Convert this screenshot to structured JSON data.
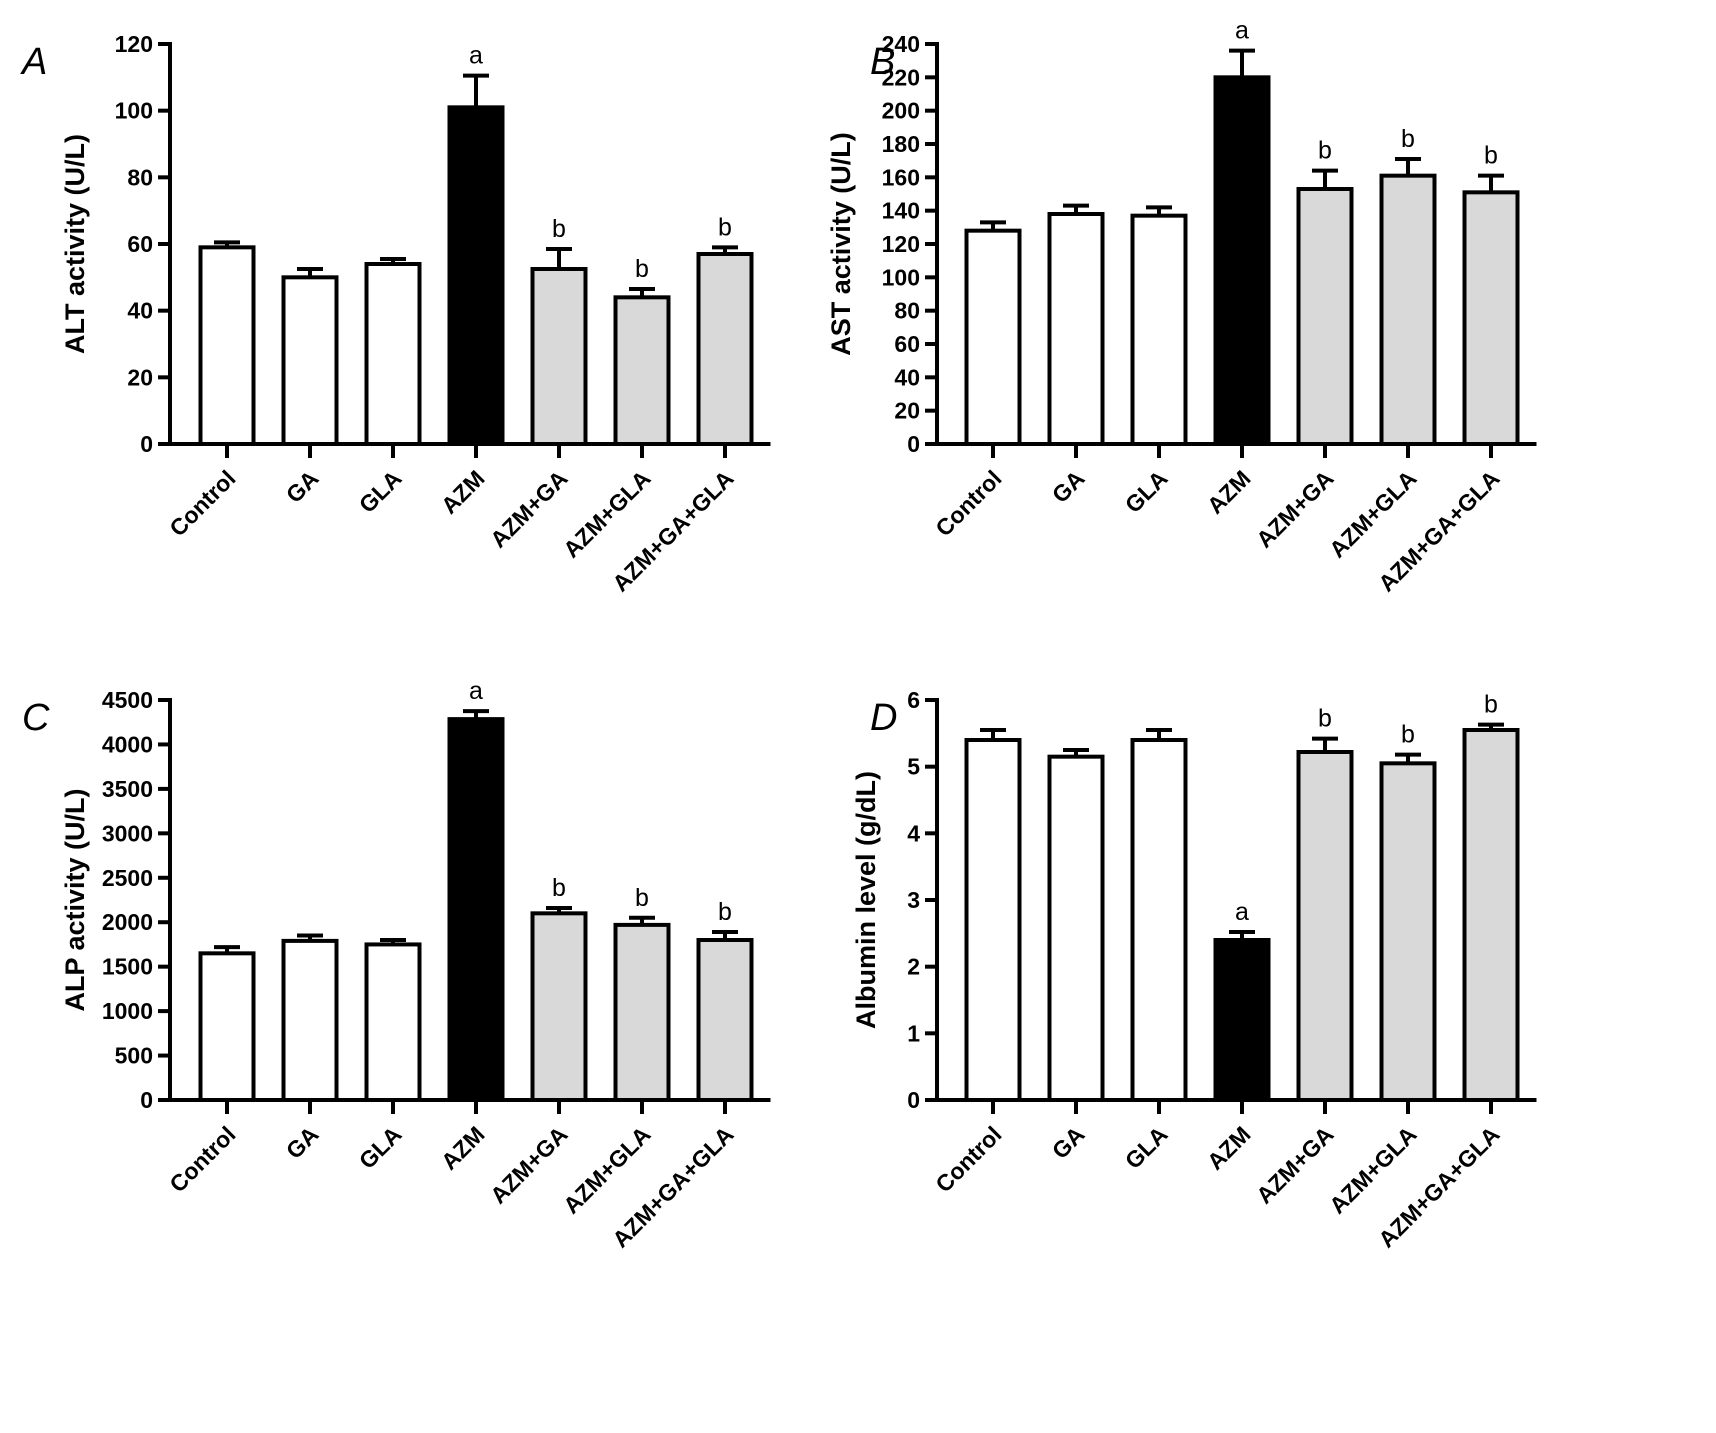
{
  "figure": {
    "panels": [
      "A",
      "B",
      "C",
      "D"
    ]
  },
  "chart_data": [
    {
      "type": "bar",
      "panel_letter": "A",
      "title": "",
      "xlabel": "",
      "ylabel": "ALT activity (U/L)",
      "categories": [
        "Control",
        "GA",
        "GLA",
        "AZM",
        "AZM+GA",
        "AZM+GLA",
        "AZM+GA+GLA"
      ],
      "values": [
        59,
        50,
        54,
        101,
        52.5,
        44,
        57
      ],
      "errors": [
        1.5,
        2.5,
        1.5,
        9.5,
        6,
        2.5,
        2
      ],
      "fill_colors": [
        "#ffffff",
        "#ffffff",
        "#ffffff",
        "#000000",
        "#d9d9d9",
        "#d9d9d9",
        "#d9d9d9"
      ],
      "significance": [
        "",
        "",
        "",
        "a",
        "b",
        "b",
        "b"
      ],
      "ylim": [
        0,
        120
      ],
      "yticks": [
        0,
        20,
        40,
        60,
        80,
        100,
        120
      ],
      "grid": false,
      "legend": "none"
    },
    {
      "type": "bar",
      "panel_letter": "B",
      "title": "",
      "xlabel": "",
      "ylabel": "AST activity (U/L)",
      "categories": [
        "Control",
        "GA",
        "GLA",
        "AZM",
        "AZM+GA",
        "AZM+GLA",
        "AZM+GA+GLA"
      ],
      "values": [
        128,
        138,
        137,
        220,
        153,
        161,
        151
      ],
      "errors": [
        5,
        5,
        5,
        16,
        11,
        10,
        10
      ],
      "fill_colors": [
        "#ffffff",
        "#ffffff",
        "#ffffff",
        "#000000",
        "#d9d9d9",
        "#d9d9d9",
        "#d9d9d9"
      ],
      "significance": [
        "",
        "",
        "",
        "a",
        "b",
        "b",
        "b"
      ],
      "ylim": [
        0,
        240
      ],
      "yticks": [
        0,
        20,
        40,
        60,
        80,
        100,
        120,
        140,
        160,
        180,
        200,
        220,
        240
      ],
      "grid": false,
      "legend": "none"
    },
    {
      "type": "bar",
      "panel_letter": "C",
      "title": "",
      "xlabel": "",
      "ylabel": "ALP activity (U/L)",
      "categories": [
        "Control",
        "GA",
        "GLA",
        "AZM",
        "AZM+GA",
        "AZM+GLA",
        "AZM+GA+GLA"
      ],
      "values": [
        1650,
        1790,
        1750,
        4285,
        2100,
        1970,
        1800
      ],
      "errors": [
        70,
        60,
        50,
        90,
        60,
        80,
        90
      ],
      "fill_colors": [
        "#ffffff",
        "#ffffff",
        "#ffffff",
        "#000000",
        "#d9d9d9",
        "#d9d9d9",
        "#d9d9d9"
      ],
      "significance": [
        "",
        "",
        "",
        "a",
        "b",
        "b",
        "b"
      ],
      "ylim": [
        0,
        4500
      ],
      "yticks": [
        0,
        500,
        1000,
        1500,
        2000,
        2500,
        3000,
        3500,
        4000,
        4500
      ],
      "grid": false,
      "legend": "none"
    },
    {
      "type": "bar",
      "panel_letter": "D",
      "title": "",
      "xlabel": "",
      "ylabel": "Albumin level (g/dL)",
      "categories": [
        "Control",
        "GA",
        "GLA",
        "AZM",
        "AZM+GA",
        "AZM+GLA",
        "AZM+GA+GLA"
      ],
      "values": [
        5.4,
        5.15,
        5.4,
        2.4,
        5.22,
        5.05,
        5.55
      ],
      "errors": [
        0.15,
        0.1,
        0.15,
        0.12,
        0.2,
        0.13,
        0.08
      ],
      "fill_colors": [
        "#ffffff",
        "#ffffff",
        "#ffffff",
        "#000000",
        "#d9d9d9",
        "#d9d9d9",
        "#d9d9d9"
      ],
      "significance": [
        "",
        "",
        "",
        "a",
        "b",
        "b",
        "b"
      ],
      "ylim": [
        0,
        6
      ],
      "yticks": [
        0,
        1,
        2,
        3,
        4,
        5,
        6
      ],
      "grid": false,
      "legend": "none"
    }
  ]
}
